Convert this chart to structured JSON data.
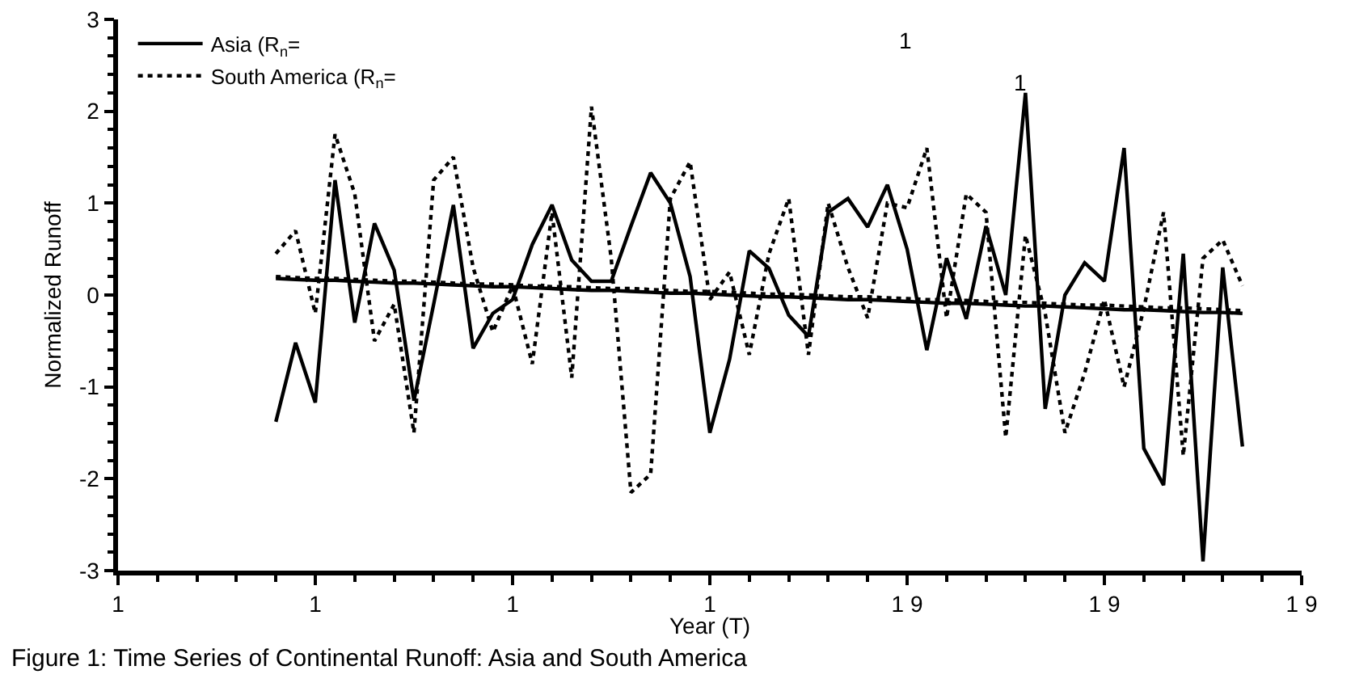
{
  "chart_data": {
    "type": "line",
    "xlabel": "Year (T)",
    "ylabel": "Normalized Runoff",
    "categories": [
      "1",
      null,
      null,
      null,
      null,
      null,
      null,
      null,
      null,
      null,
      "1",
      null,
      null,
      null,
      null,
      null,
      null,
      null,
      null,
      null,
      "1",
      null,
      null,
      null,
      null,
      null,
      null,
      null,
      null,
      null,
      "1",
      null,
      null,
      null,
      null,
      null,
      null,
      null,
      null,
      null,
      "1 9",
      null,
      null,
      null,
      null,
      null,
      null,
      null,
      null,
      null,
      "1 9",
      null,
      null,
      null,
      null,
      null,
      null,
      null,
      null,
      null,
      "1 9"
    ],
    "ylim": [
      -3,
      3
    ],
    "yticks": [
      -3,
      -2,
      -1,
      0,
      1,
      2,
      3
    ],
    "legend": "top left",
    "marker": "none",
    "annotations": [
      "1",
      "1",
      "Figure 1: Time Series of Continental Runoff: Asia and South America"
    ],
    "series": [
      {
        "name": "Asia (R$_{n}$=",
        "color": "#000000",
        "line_style": "solid",
        "values": [
          null,
          null,
          null,
          null,
          null,
          null,
          null,
          null,
          -1.38,
          -0.52,
          -1.17,
          1.25,
          -0.3,
          0.78,
          0.27,
          -1.15,
          -0.1,
          0.98,
          -0.58,
          -0.2,
          -0.05,
          0.55,
          0.98,
          0.38,
          0.15,
          0.15,
          0.75,
          1.33,
          1.0,
          0.2,
          -1.5,
          -0.7,
          0.48,
          0.29,
          -0.22,
          -0.45,
          0.9,
          1.05,
          0.74,
          1.2,
          0.5,
          -0.6,
          0.4,
          -0.26,
          0.75,
          0.0,
          2.2,
          -1.24,
          0.0,
          0.35,
          0.15,
          1.6,
          -1.67,
          -2.07,
          0.45,
          -2.9,
          0.3,
          -1.65,
          null,
          null,
          null
        ]
      },
      {
        "name": "South America (R$_{n}$=",
        "color": "#000000",
        "line_style": "dotted",
        "values": [
          null,
          null,
          null,
          null,
          null,
          null,
          null,
          null,
          0.45,
          0.7,
          -0.2,
          1.75,
          1.1,
          -0.5,
          -0.1,
          -1.5,
          1.25,
          1.5,
          0.3,
          -0.4,
          0.1,
          -0.75,
          0.9,
          -0.9,
          2.05,
          0.4,
          -2.15,
          -1.95,
          1.05,
          1.45,
          -0.05,
          0.25,
          -0.65,
          0.45,
          1.05,
          -0.65,
          1.0,
          0.3,
          -0.25,
          1.0,
          0.95,
          1.6,
          -0.25,
          1.1,
          0.9,
          -1.55,
          0.65,
          -0.2,
          -1.5,
          -0.85,
          -0.05,
          -1.0,
          -0.15,
          0.9,
          -1.75,
          0.4,
          0.6,
          0.1,
          null,
          null,
          null
        ]
      },
      {
        "color": "#000000",
        "line_style": "solid",
        "values": [
          null,
          null,
          null,
          null,
          null,
          null,
          null,
          null,
          0.18,
          0.17,
          0.16,
          0.16,
          0.15,
          0.14,
          0.13,
          0.13,
          0.12,
          0.11,
          0.1,
          0.09,
          0.09,
          0.08,
          0.07,
          0.06,
          0.05,
          0.05,
          0.04,
          0.03,
          0.02,
          0.02,
          0.01,
          0.0,
          -0.01,
          -0.02,
          -0.02,
          -0.03,
          -0.04,
          -0.05,
          -0.05,
          -0.06,
          -0.07,
          -0.08,
          -0.09,
          -0.09,
          -0.1,
          -0.11,
          -0.12,
          -0.12,
          -0.13,
          -0.14,
          -0.15,
          -0.16,
          -0.16,
          -0.17,
          -0.18,
          -0.19,
          -0.19,
          -0.2,
          null,
          null,
          null
        ]
      },
      {
        "color": "#000000",
        "line_style": "dotted",
        "values": [
          null,
          null,
          null,
          null,
          null,
          null,
          null,
          null,
          0.2,
          0.19,
          0.18,
          0.18,
          0.17,
          0.16,
          0.15,
          0.15,
          0.14,
          0.13,
          0.12,
          0.12,
          0.11,
          0.1,
          0.09,
          0.09,
          0.08,
          0.07,
          0.07,
          0.06,
          0.05,
          0.04,
          0.04,
          0.03,
          0.02,
          0.01,
          0.01,
          0.0,
          -0.01,
          -0.02,
          -0.02,
          -0.03,
          -0.04,
          -0.05,
          -0.05,
          -0.06,
          -0.07,
          -0.08,
          -0.08,
          -0.09,
          -0.1,
          -0.11,
          -0.11,
          -0.12,
          -0.13,
          -0.14,
          -0.14,
          -0.15,
          -0.16,
          -0.17,
          null,
          null,
          null
        ]
      }
    ]
  }
}
